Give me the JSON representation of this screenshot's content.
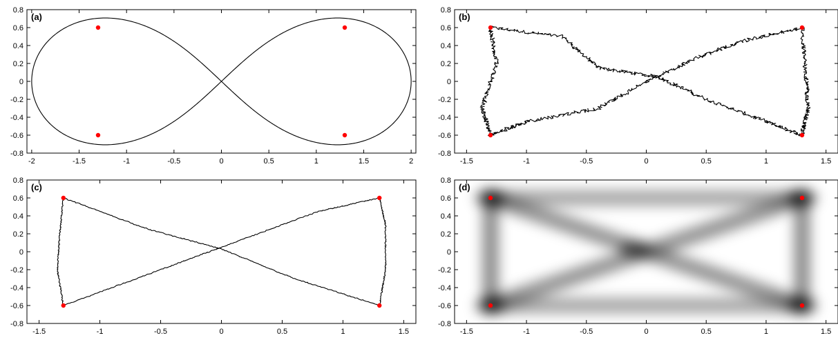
{
  "chart_data": [
    {
      "type": "line",
      "panel_label": "(a)",
      "xlim": [
        -2.05,
        2.05
      ],
      "ylim": [
        -0.8,
        0.8
      ],
      "xticks": [
        -2,
        -1.5,
        -1,
        -0.5,
        0,
        0.5,
        1,
        1.5,
        2
      ],
      "xtick_labels": [
        "-2",
        "-1.5",
        "-1",
        "-0.5",
        "0",
        "0.5",
        "1",
        "1.5",
        "2"
      ],
      "yticks": [
        0.8,
        0.6,
        0.4,
        0.2,
        0,
        -0.2,
        -0.4,
        -0.6,
        -0.8
      ],
      "ytick_labels": [
        "0.8",
        "0.6",
        "0.4",
        "0.2",
        "0",
        "-0.2",
        "-0.4",
        "-0.6",
        "-0.8"
      ],
      "curve": "lemniscate",
      "curve_params": {
        "a": 2.0
      },
      "points": [
        {
          "x": -1.3,
          "y": 0.6
        },
        {
          "x": 1.3,
          "y": 0.6
        },
        {
          "x": -1.3,
          "y": -0.6
        },
        {
          "x": 1.3,
          "y": -0.6
        }
      ],
      "point_color": "#ff0000",
      "line_color": "#000000"
    },
    {
      "type": "line",
      "panel_label": "(b)",
      "xlim": [
        -1.6,
        1.6
      ],
      "ylim": [
        -0.8,
        0.8
      ],
      "xticks": [
        -1.5,
        -1,
        -0.5,
        0,
        0.5,
        1,
        1.5
      ],
      "xtick_labels": [
        "-1.5",
        "-1",
        "-0.5",
        "0",
        "0.5",
        "1",
        "1.5"
      ],
      "yticks": [
        0.8,
        0.6,
        0.4,
        0.2,
        0,
        -0.2,
        -0.4,
        -0.6,
        -0.8
      ],
      "ytick_labels": [
        "0.8",
        "0.6",
        "0.4",
        "0.2",
        "0",
        "-0.2",
        "-0.4",
        "-0.6",
        "-0.8"
      ],
      "curve": "noisy-bowtie",
      "path": [
        [
          -1.3,
          0.6
        ],
        [
          -0.7,
          0.5
        ],
        [
          -0.4,
          0.15
        ],
        [
          0.1,
          0.05
        ],
        [
          0.5,
          -0.2
        ],
        [
          1.0,
          -0.45
        ],
        [
          1.3,
          -0.6
        ],
        [
          1.35,
          -0.3
        ],
        [
          1.33,
          0.1
        ],
        [
          1.3,
          0.6
        ],
        [
          0.8,
          0.45
        ],
        [
          0.4,
          0.25
        ],
        [
          0.0,
          0.0
        ],
        [
          -0.4,
          -0.3
        ],
        [
          -1.0,
          -0.45
        ],
        [
          -1.3,
          -0.6
        ],
        [
          -1.37,
          -0.3
        ],
        [
          -1.25,
          0.2
        ],
        [
          -1.3,
          0.6
        ]
      ],
      "noise": 0.018,
      "points": [
        {
          "x": -1.3,
          "y": 0.6
        },
        {
          "x": 1.3,
          "y": 0.6
        },
        {
          "x": -1.3,
          "y": -0.6
        },
        {
          "x": 1.3,
          "y": -0.6
        }
      ],
      "point_color": "#ff0000",
      "line_color": "#000000"
    },
    {
      "type": "line",
      "panel_label": "(c)",
      "xlim": [
        -1.6,
        1.6
      ],
      "ylim": [
        -0.8,
        0.8
      ],
      "xticks": [
        -1.5,
        -1,
        -0.5,
        0,
        0.5,
        1,
        1.5
      ],
      "xtick_labels": [
        "-1.5",
        "-1",
        "-0.5",
        "0",
        "0.5",
        "1",
        "1.5"
      ],
      "yticks": [
        0.8,
        0.6,
        0.4,
        0.2,
        0,
        -0.2,
        -0.4,
        -0.6,
        -0.8
      ],
      "ytick_labels": [
        "0.8",
        "0.6",
        "0.4",
        "0.2",
        "0",
        "-0.2",
        "-0.4",
        "-0.6",
        "-0.8"
      ],
      "curve": "smooth-bowtie",
      "path": [
        [
          -1.3,
          0.6
        ],
        [
          -0.6,
          0.25
        ],
        [
          0.0,
          0.03
        ],
        [
          0.6,
          -0.3
        ],
        [
          1.3,
          -0.6
        ],
        [
          1.35,
          -0.2
        ],
        [
          1.35,
          0.3
        ],
        [
          1.3,
          0.6
        ],
        [
          0.8,
          0.45
        ],
        [
          0.0,
          0.05
        ],
        [
          -0.5,
          -0.2
        ],
        [
          -1.3,
          -0.6
        ],
        [
          -1.35,
          -0.2
        ],
        [
          -1.33,
          0.2
        ],
        [
          -1.3,
          0.6
        ]
      ],
      "noise": 0.005,
      "points": [
        {
          "x": -1.3,
          "y": 0.6
        },
        {
          "x": 1.3,
          "y": 0.6
        },
        {
          "x": -1.3,
          "y": -0.6
        },
        {
          "x": 1.3,
          "y": -0.6
        }
      ],
      "point_color": "#ff0000",
      "line_color": "#000000"
    },
    {
      "type": "heatmap",
      "panel_label": "(d)",
      "xlim": [
        -1.6,
        1.6
      ],
      "ylim": [
        -0.8,
        0.8
      ],
      "xticks": [
        -1.5,
        -1,
        -0.5,
        0,
        0.5,
        1,
        1.5
      ],
      "xtick_labels": [
        "-1.5",
        "-1",
        "-0.5",
        "0",
        "0.5",
        "1",
        "1.5"
      ],
      "yticks": [
        0.8,
        0.6,
        0.4,
        0.2,
        0,
        -0.2,
        -0.4,
        -0.6,
        -0.8
      ],
      "ytick_labels": [
        "0.8",
        "0.6",
        "0.4",
        "0.2",
        "0",
        "-0.2",
        "-0.4",
        "-0.6",
        "-0.8"
      ],
      "density_segments": [
        {
          "from": [
            -1.3,
            0.6
          ],
          "to": [
            1.3,
            -0.6
          ],
          "w": 0.75
        },
        {
          "from": [
            -1.3,
            -0.6
          ],
          "to": [
            1.3,
            0.6
          ],
          "w": 0.75
        },
        {
          "from": [
            -1.3,
            0.6
          ],
          "to": [
            1.3,
            0.6
          ],
          "w": 0.6
        },
        {
          "from": [
            -1.3,
            -0.6
          ],
          "to": [
            1.3,
            -0.6
          ],
          "w": 0.6
        },
        {
          "from": [
            -1.3,
            0.6
          ],
          "to": [
            -1.3,
            -0.6
          ],
          "w": 0.8
        },
        {
          "from": [
            1.3,
            0.6
          ],
          "to": [
            1.3,
            -0.6
          ],
          "w": 0.8
        }
      ],
      "density_peaks": [
        {
          "x": -1.3,
          "y": 0.6,
          "w": 0.7
        },
        {
          "x": 1.3,
          "y": 0.6,
          "w": 0.7
        },
        {
          "x": -1.3,
          "y": -0.6,
          "w": 0.7
        },
        {
          "x": 1.3,
          "y": -0.6,
          "w": 0.7
        },
        {
          "x": -0.1,
          "y": 0.03,
          "w": 0.6
        }
      ],
      "points": [
        {
          "x": -1.3,
          "y": 0.6
        },
        {
          "x": 1.3,
          "y": 0.6
        },
        {
          "x": -1.3,
          "y": -0.6
        },
        {
          "x": 1.3,
          "y": -0.6
        }
      ],
      "point_color": "#ff0000"
    }
  ]
}
